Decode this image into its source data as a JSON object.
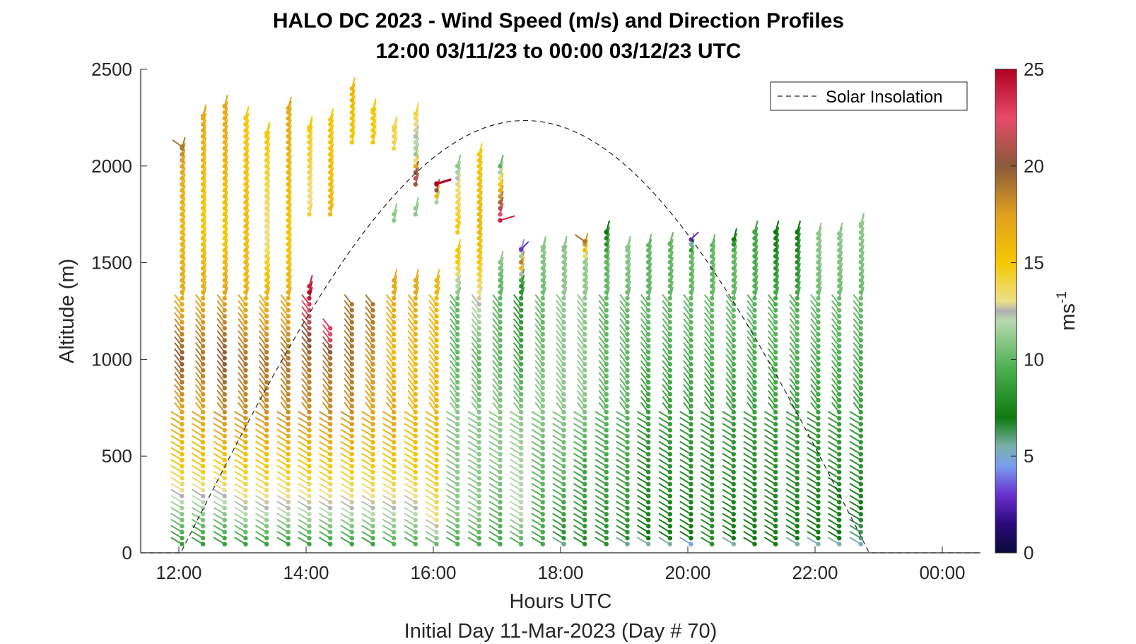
{
  "chart_data": {
    "type": "scatter",
    "title": "HALO DC 2023 - Wind Speed (m/s) and Direction Profiles",
    "subtitle": "12:00 03/11/23 to 00:00 03/12/23  UTC",
    "xlabel": "Hours UTC",
    "ylabel": "Altitude (m)",
    "footer": "Initial Day 11-Mar-2023 (Day # 70)",
    "x_ticks": [
      {
        "hour": 12,
        "label": "12:00"
      },
      {
        "hour": 14,
        "label": "14:00"
      },
      {
        "hour": 16,
        "label": "16:00"
      },
      {
        "hour": 18,
        "label": "18:00"
      },
      {
        "hour": 20,
        "label": "20:00"
      },
      {
        "hour": 22,
        "label": "22:00"
      },
      {
        "hour": 24,
        "label": "00:00"
      }
    ],
    "y_ticks": [
      0,
      500,
      1000,
      1500,
      2000,
      2500
    ],
    "xlim": [
      11.4,
      24.6
    ],
    "ylim": [
      0,
      2500
    ],
    "grid": false,
    "colorbar": {
      "label": "ms",
      "label_exponent": "-1",
      "range": [
        0,
        25
      ],
      "ticks": [
        0,
        5,
        10,
        15,
        20,
        25
      ],
      "stops": [
        {
          "v": 0,
          "c": "#0b0b3a"
        },
        {
          "v": 1.5,
          "c": "#2a0a7a"
        },
        {
          "v": 3,
          "c": "#6a2fd0"
        },
        {
          "v": 4.5,
          "c": "#7a9ef0"
        },
        {
          "v": 5.5,
          "c": "#7ab0a8"
        },
        {
          "v": 7,
          "c": "#0e7a0e"
        },
        {
          "v": 9.5,
          "c": "#4caf50"
        },
        {
          "v": 12,
          "c": "#b8d8b0"
        },
        {
          "v": 12.5,
          "c": "#b0b0b0"
        },
        {
          "v": 13,
          "c": "#ece08a"
        },
        {
          "v": 15,
          "c": "#f5c800"
        },
        {
          "v": 17.5,
          "c": "#e0a020"
        },
        {
          "v": 20,
          "c": "#8a5a3a"
        },
        {
          "v": 22.5,
          "c": "#e84a6a"
        },
        {
          "v": 25,
          "c": "#b00020"
        }
      ]
    },
    "legend": {
      "entries": [
        "Solar Insolation"
      ],
      "position": "top-right"
    },
    "solar_insolation": {
      "sunrise_hour": 12.03,
      "sunset_hour": 22.85,
      "peak_altitude_equiv": 2235
    },
    "profiles": [
      {
        "hour": 12.05,
        "top": 2100,
        "speed": [
          [
            0,
            8
          ],
          [
            200,
            11
          ],
          [
            450,
            15
          ],
          [
            700,
            17
          ],
          [
            1000,
            20
          ],
          [
            1250,
            17
          ],
          [
            1700,
            16
          ],
          [
            2000,
            17
          ],
          [
            2100,
            19
          ]
        ]
      },
      {
        "hour": 12.38,
        "top": 2260,
        "speed": [
          [
            0,
            8
          ],
          [
            200,
            11
          ],
          [
            450,
            15
          ],
          [
            700,
            17
          ],
          [
            1000,
            19
          ],
          [
            1300,
            17
          ],
          [
            1700,
            15
          ],
          [
            2260,
            17
          ]
        ]
      },
      {
        "hour": 12.72,
        "top": 2310,
        "speed": [
          [
            0,
            8
          ],
          [
            200,
            11
          ],
          [
            450,
            15
          ],
          [
            700,
            18
          ],
          [
            1000,
            20
          ],
          [
            1350,
            17
          ],
          [
            1620,
            15
          ],
          [
            2310,
            17
          ]
        ]
      },
      {
        "hour": 13.05,
        "top": 2250,
        "speed": [
          [
            0,
            8
          ],
          [
            200,
            12
          ],
          [
            450,
            15
          ],
          [
            700,
            18
          ],
          [
            1000,
            19
          ],
          [
            1400,
            16
          ],
          [
            2250,
            15
          ]
        ]
      },
      {
        "hour": 13.38,
        "top": 2170,
        "speed": [
          [
            0,
            8
          ],
          [
            200,
            12
          ],
          [
            450,
            15
          ],
          [
            700,
            18
          ],
          [
            1000,
            19
          ],
          [
            1350,
            16
          ],
          [
            1620,
            13
          ],
          [
            2170,
            15
          ]
        ]
      },
      {
        "hour": 13.72,
        "top": 2300,
        "speed": [
          [
            0,
            8
          ],
          [
            200,
            12
          ],
          [
            450,
            15
          ],
          [
            700,
            18
          ],
          [
            1000,
            19
          ],
          [
            1400,
            16
          ],
          [
            1620,
            15
          ],
          [
            2300,
            17
          ]
        ]
      },
      {
        "hour": 14.05,
        "top": 2200,
        "gaps": [
          [
            1400,
            1750
          ]
        ],
        "speed": [
          [
            0,
            8
          ],
          [
            200,
            12
          ],
          [
            450,
            15
          ],
          [
            700,
            18
          ],
          [
            1000,
            19
          ],
          [
            1250,
            22
          ],
          [
            1340,
            25
          ],
          [
            1800,
            13
          ],
          [
            2200,
            15
          ]
        ]
      },
      {
        "hour": 14.38,
        "top": 2240,
        "gaps": [
          [
            1180,
            1750
          ]
        ],
        "speed": [
          [
            0,
            8
          ],
          [
            200,
            12
          ],
          [
            450,
            15
          ],
          [
            700,
            18
          ],
          [
            1000,
            19
          ],
          [
            1150,
            23
          ],
          [
            1750,
            16
          ],
          [
            2240,
            15
          ]
        ]
      },
      {
        "hour": 14.72,
        "top": 2400,
        "gaps": [
          [
            1290,
            2120
          ]
        ],
        "speed": [
          [
            0,
            8
          ],
          [
            200,
            12
          ],
          [
            450,
            15
          ],
          [
            700,
            18
          ],
          [
            1000,
            19
          ],
          [
            1290,
            19
          ],
          [
            2120,
            15
          ],
          [
            2400,
            16
          ]
        ]
      },
      {
        "hour": 15.05,
        "top": 2290,
        "gaps": [
          [
            1290,
            2120
          ]
        ],
        "speed": [
          [
            0,
            8
          ],
          [
            200,
            12
          ],
          [
            450,
            15
          ],
          [
            700,
            17
          ],
          [
            1000,
            18
          ],
          [
            1290,
            19
          ],
          [
            2120,
            15
          ],
          [
            2290,
            15
          ]
        ]
      },
      {
        "hour": 15.38,
        "top": 2200,
        "gaps": [
          [
            1410,
            1700
          ],
          [
            1760,
            2080
          ]
        ],
        "speed": [
          [
            0,
            9
          ],
          [
            200,
            12
          ],
          [
            450,
            15
          ],
          [
            700,
            17
          ],
          [
            1000,
            16
          ],
          [
            1410,
            17
          ],
          [
            1700,
            11
          ],
          [
            1760,
            11
          ],
          [
            2080,
            14
          ],
          [
            2200,
            14
          ]
        ]
      },
      {
        "hour": 15.72,
        "top": 2270,
        "gaps": [
          [
            1410,
            1750
          ],
          [
            1810,
            1900
          ]
        ],
        "speed": [
          [
            0,
            9
          ],
          [
            200,
            12
          ],
          [
            450,
            15
          ],
          [
            700,
            16
          ],
          [
            1000,
            16
          ],
          [
            1410,
            17
          ],
          [
            1750,
            11
          ],
          [
            1810,
            11
          ],
          [
            1900,
            20
          ],
          [
            1950,
            22
          ],
          [
            2050,
            11
          ],
          [
            2270,
            14
          ]
        ]
      },
      {
        "hour": 16.05,
        "top": 1910,
        "gaps": [
          [
            1420,
            1800
          ]
        ],
        "speed": [
          [
            0,
            9
          ],
          [
            150,
            13
          ],
          [
            450,
            15
          ],
          [
            700,
            16
          ],
          [
            1000,
            16
          ],
          [
            1420,
            16
          ],
          [
            1800,
            10
          ],
          [
            1910,
            25
          ]
        ]
      },
      {
        "hour": 16.38,
        "top": 2000,
        "gaps": [
          [
            1570,
            1650
          ]
        ],
        "speed": [
          [
            0,
            9
          ],
          [
            200,
            11
          ],
          [
            450,
            11
          ],
          [
            700,
            11
          ],
          [
            1000,
            10
          ],
          [
            1300,
            10
          ],
          [
            1500,
            15
          ],
          [
            1650,
            15
          ],
          [
            1900,
            13
          ],
          [
            2000,
            11
          ]
        ]
      },
      {
        "hour": 16.72,
        "top": 2060,
        "speed": [
          [
            0,
            9
          ],
          [
            200,
            11
          ],
          [
            450,
            11
          ],
          [
            700,
            11
          ],
          [
            1000,
            10
          ],
          [
            1250,
            12
          ],
          [
            1500,
            15
          ],
          [
            1700,
            16
          ],
          [
            2060,
            15
          ]
        ]
      },
      {
        "hour": 17.05,
        "top": 2000,
        "gaps": [
          [
            1520,
            1700
          ]
        ],
        "speed": [
          [
            0,
            9
          ],
          [
            200,
            10
          ],
          [
            450,
            11
          ],
          [
            700,
            11
          ],
          [
            1000,
            10
          ],
          [
            1400,
            10
          ],
          [
            1520,
            11
          ],
          [
            1700,
            25
          ],
          [
            2000,
            10
          ]
        ]
      },
      {
        "hour": 17.38,
        "top": 1570,
        "speed": [
          [
            0,
            9
          ],
          [
            200,
            12
          ],
          [
            300,
            12
          ],
          [
            700,
            11
          ],
          [
            1000,
            9
          ],
          [
            1400,
            8
          ],
          [
            1500,
            19
          ],
          [
            1570,
            3
          ]
        ]
      },
      {
        "hour": 17.72,
        "top": 1580,
        "speed": [
          [
            0,
            9
          ],
          [
            400,
            10
          ],
          [
            800,
            11
          ],
          [
            1200,
            10
          ],
          [
            1580,
            11
          ]
        ]
      },
      {
        "hour": 18.05,
        "top": 1580,
        "speed": [
          [
            40,
            5
          ],
          [
            60,
            8
          ],
          [
            400,
            10
          ],
          [
            800,
            11
          ],
          [
            1200,
            11
          ],
          [
            1580,
            11
          ]
        ]
      },
      {
        "hour": 18.38,
        "top": 1610,
        "speed": [
          [
            0,
            8
          ],
          [
            400,
            9
          ],
          [
            800,
            11
          ],
          [
            1200,
            11
          ],
          [
            1500,
            11
          ],
          [
            1610,
            19
          ]
        ]
      },
      {
        "hour": 18.72,
        "top": 1660,
        "speed": [
          [
            0,
            8
          ],
          [
            400,
            9
          ],
          [
            800,
            10
          ],
          [
            1200,
            10
          ],
          [
            1500,
            10
          ],
          [
            1660,
            7
          ]
        ]
      },
      {
        "hour": 19.05,
        "top": 1580,
        "speed": [
          [
            40,
            5
          ],
          [
            60,
            8
          ],
          [
            400,
            9
          ],
          [
            800,
            10
          ],
          [
            1200,
            10
          ],
          [
            1580,
            11
          ]
        ]
      },
      {
        "hour": 19.38,
        "top": 1590,
        "speed": [
          [
            40,
            5
          ],
          [
            60,
            7
          ],
          [
            400,
            8
          ],
          [
            800,
            9
          ],
          [
            1200,
            10
          ],
          [
            1590,
            10
          ]
        ]
      },
      {
        "hour": 19.72,
        "top": 1600,
        "speed": [
          [
            40,
            5
          ],
          [
            60,
            7
          ],
          [
            400,
            8
          ],
          [
            800,
            9
          ],
          [
            1200,
            10
          ],
          [
            1600,
            10
          ]
        ]
      },
      {
        "hour": 20.05,
        "top": 1620,
        "speed": [
          [
            40,
            4
          ],
          [
            60,
            7
          ],
          [
            400,
            8
          ],
          [
            800,
            9
          ],
          [
            1200,
            10
          ],
          [
            1550,
            10
          ],
          [
            1620,
            3
          ]
        ]
      },
      {
        "hour": 20.38,
        "top": 1590,
        "speed": [
          [
            0,
            8
          ],
          [
            400,
            8
          ],
          [
            800,
            9
          ],
          [
            1200,
            10
          ],
          [
            1590,
            10
          ]
        ]
      },
      {
        "hour": 20.72,
        "top": 1620,
        "speed": [
          [
            40,
            5
          ],
          [
            60,
            7
          ],
          [
            400,
            8
          ],
          [
            800,
            9
          ],
          [
            1200,
            10
          ],
          [
            1550,
            10
          ],
          [
            1620,
            7
          ]
        ]
      },
      {
        "hour": 21.05,
        "top": 1660,
        "speed": [
          [
            0,
            7
          ],
          [
            400,
            8
          ],
          [
            800,
            9
          ],
          [
            1200,
            10
          ],
          [
            1660,
            9
          ]
        ]
      },
      {
        "hour": 21.38,
        "top": 1660,
        "speed": [
          [
            0,
            7
          ],
          [
            400,
            8
          ],
          [
            800,
            9
          ],
          [
            1200,
            10
          ],
          [
            1660,
            7
          ]
        ]
      },
      {
        "hour": 21.72,
        "top": 1660,
        "speed": [
          [
            40,
            5
          ],
          [
            60,
            7
          ],
          [
            400,
            8
          ],
          [
            800,
            9
          ],
          [
            1200,
            10
          ],
          [
            1660,
            7
          ]
        ]
      },
      {
        "hour": 22.05,
        "top": 1650,
        "speed": [
          [
            40,
            5
          ],
          [
            60,
            7
          ],
          [
            400,
            8
          ],
          [
            800,
            9
          ],
          [
            1200,
            10
          ],
          [
            1650,
            11
          ]
        ]
      },
      {
        "hour": 22.38,
        "top": 1650,
        "speed": [
          [
            40,
            5
          ],
          [
            60,
            7
          ],
          [
            400,
            8
          ],
          [
            800,
            9
          ],
          [
            1200,
            10
          ],
          [
            1650,
            11
          ]
        ]
      },
      {
        "hour": 22.72,
        "top": 1700,
        "speed": [
          [
            40,
            5
          ],
          [
            60,
            6
          ],
          [
            400,
            8
          ],
          [
            800,
            9
          ],
          [
            1200,
            10
          ],
          [
            1700,
            11
          ]
        ]
      }
    ]
  }
}
